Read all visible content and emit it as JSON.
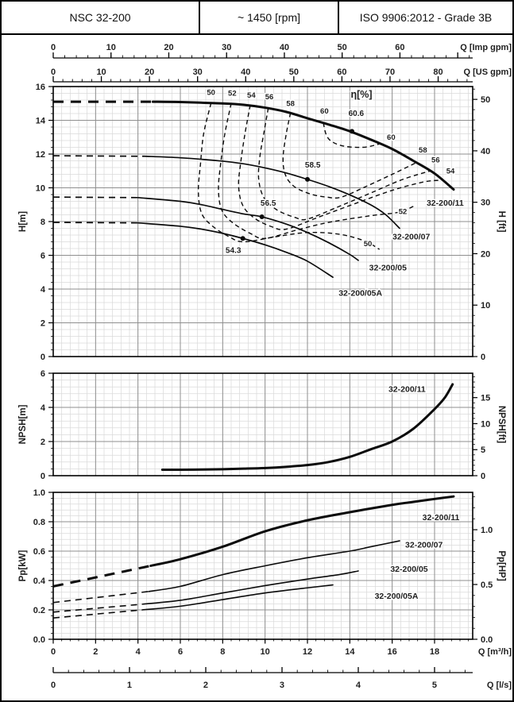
{
  "header": {
    "model": "NSC 32-200",
    "speed": "~ 1450 [rpm]",
    "standard": "ISO 9906:2012 - Grade 3B"
  },
  "colors": {
    "curve": "#0b0b0b",
    "grid_minor": "#dadada",
    "grid_major": "#8f8f8f",
    "border": "#000000",
    "text": "#1f1f1f"
  },
  "axes_top": [
    {
      "id": "imp-gpm",
      "label": "Q [Imp gpm]",
      "units_per_m3h": 3.6662,
      "major": 10,
      "minor": 2,
      "max_label": 60
    },
    {
      "id": "us-gpm",
      "label": "Q [US gpm]",
      "units_per_m3h": 4.4029,
      "major": 10,
      "minor": 2,
      "max_label": 80
    }
  ],
  "axes_bottom": [
    {
      "id": "m3h",
      "label": "Q [m³/h]",
      "units_per_m3h": 1,
      "major": 2,
      "minor": 0.4,
      "max_label": 18
    },
    {
      "id": "ls",
      "label": "Q [l/s]",
      "units_per_m3h": 0.27778,
      "major": 1,
      "minor": 0.2,
      "max_label": 5
    }
  ],
  "chart_data": [
    {
      "id": "head",
      "type": "line",
      "x_range": [
        0,
        19.8
      ],
      "x_unit": "m3/h",
      "y_left": {
        "label": "H[m]",
        "range": [
          0,
          16
        ],
        "major": 2,
        "minor": 0.4,
        "fmt": "int"
      },
      "y_right": {
        "label": "H [ft]",
        "per_left_unit": 3.2808,
        "major": 10,
        "minor": 2,
        "fmt": "int"
      },
      "eta_title": {
        "text": "η[%]",
        "at": [
          14.55,
          15.35
        ]
      },
      "series": [
        {
          "name": "32-200/11",
          "width": 3,
          "dash": [
            [
              0,
              15.1
            ],
            [
              4.7,
              15.1
            ]
          ],
          "solid": [
            [
              4.7,
              15.1
            ],
            [
              6,
              15.08
            ],
            [
              8,
              15.0
            ],
            [
              9,
              14.92
            ],
            [
              10,
              14.75
            ],
            [
              11,
              14.5
            ],
            [
              12,
              14.12
            ],
            [
              13,
              13.75
            ],
            [
              14,
              13.35
            ],
            [
              15,
              12.85
            ],
            [
              16,
              12.3
            ],
            [
              17,
              11.6
            ],
            [
              18,
              10.85
            ],
            [
              18.9,
              9.9
            ]
          ],
          "label": {
            "text": "32-200/11",
            "at": [
              18.5,
              8.95
            ]
          }
        },
        {
          "name": "32-200/07",
          "width": 1.7,
          "dash": [
            [
              0,
              11.9
            ],
            [
              4.3,
              11.87
            ]
          ],
          "solid": [
            [
              4.3,
              11.87
            ],
            [
              6,
              11.78
            ],
            [
              8,
              11.58
            ],
            [
              9,
              11.42
            ],
            [
              10,
              11.18
            ],
            [
              11,
              10.88
            ],
            [
              12,
              10.5
            ],
            [
              13,
              10.08
            ],
            [
              14,
              9.58
            ],
            [
              15,
              8.98
            ],
            [
              15.7,
              8.4
            ],
            [
              16.35,
              7.6
            ]
          ],
          "label": {
            "text": "32-200/07",
            "at": [
              16.9,
              6.95
            ]
          }
        },
        {
          "name": "32-200/05",
          "width": 1.7,
          "dash": [
            [
              0,
              9.45
            ],
            [
              4,
              9.42
            ]
          ],
          "solid": [
            [
              4,
              9.42
            ],
            [
              6,
              9.2
            ],
            [
              7,
              9.0
            ],
            [
              8,
              8.72
            ],
            [
              9,
              8.45
            ],
            [
              9.85,
              8.28
            ],
            [
              11,
              7.85
            ],
            [
              12,
              7.35
            ],
            [
              13,
              6.75
            ],
            [
              14,
              6.05
            ],
            [
              14.4,
              5.7
            ]
          ],
          "label": {
            "text": "32-200/05",
            "at": [
              15.8,
              5.1
            ]
          }
        },
        {
          "name": "32-200/05A",
          "width": 1.7,
          "dash": [
            [
              0,
              7.95
            ],
            [
              4,
              7.92
            ]
          ],
          "solid": [
            [
              4,
              7.92
            ],
            [
              6,
              7.72
            ],
            [
              7,
              7.55
            ],
            [
              8,
              7.3
            ],
            [
              8.95,
              7.0
            ],
            [
              10,
              6.62
            ],
            [
              11,
              6.18
            ],
            [
              12,
              5.65
            ],
            [
              13.2,
              4.7
            ]
          ],
          "label": {
            "text": "32-200/05A",
            "at": [
              14.5,
              3.6
            ]
          }
        }
      ],
      "bep_points": [
        {
          "value": "60.6",
          "at": [
            14.1,
            13.35
          ],
          "label_at": [
            14.3,
            14.25
          ]
        },
        {
          "value": "58.5",
          "at": [
            12.0,
            10.5
          ],
          "label_at": [
            12.25,
            11.2
          ]
        },
        {
          "value": "56.5",
          "at": [
            9.85,
            8.28
          ],
          "label_at": [
            10.15,
            8.95
          ]
        },
        {
          "value": "54.3",
          "at": [
            8.95,
            7.0
          ],
          "label_at": [
            8.5,
            6.15
          ]
        }
      ],
      "efficiency_contours": [
        {
          "value": 50,
          "points": [
            [
              7.45,
              15.02
            ],
            [
              7.1,
              13.2
            ],
            [
              6.95,
              11.4
            ],
            [
              6.85,
              9.8
            ],
            [
              7.0,
              8.5
            ],
            [
              7.5,
              7.75
            ],
            [
              8.3,
              7.1
            ],
            [
              9.0,
              6.8
            ],
            [
              10.5,
              7.1
            ],
            [
              12,
              7.35
            ],
            [
              13.5,
              7.25
            ],
            [
              14.7,
              6.85
            ],
            [
              15.4,
              6.35
            ]
          ]
        },
        {
          "value": 52,
          "points": [
            [
              8.4,
              15.0
            ],
            [
              8.1,
              13.2
            ],
            [
              7.9,
              11.4
            ],
            [
              7.8,
              9.9
            ],
            [
              7.95,
              8.7
            ],
            [
              8.45,
              7.95
            ],
            [
              9.3,
              7.3
            ],
            [
              10.0,
              7.0
            ],
            [
              11.5,
              7.5
            ],
            [
              13,
              7.95
            ],
            [
              15,
              8.35
            ],
            [
              16.3,
              8.55
            ],
            [
              17.0,
              8.9
            ]
          ]
        },
        {
          "value": 54,
          "points": [
            [
              9.3,
              14.9
            ],
            [
              9.05,
              13.2
            ],
            [
              8.85,
              11.5
            ],
            [
              8.75,
              10.1
            ],
            [
              8.95,
              8.95
            ],
            [
              9.5,
              8.2
            ],
            [
              10.3,
              7.7
            ],
            [
              11.0,
              7.55
            ],
            [
              12.5,
              8.25
            ],
            [
              14,
              8.95
            ],
            [
              16,
              9.85
            ],
            [
              17.5,
              10.35
            ],
            [
              18.3,
              10.45
            ]
          ]
        },
        {
          "value": 56,
          "points": [
            [
              10.15,
              14.72
            ],
            [
              9.95,
              13.3
            ],
            [
              9.75,
              11.8
            ],
            [
              9.7,
              10.5
            ],
            [
              9.95,
              9.4
            ],
            [
              10.55,
              8.7
            ],
            [
              11.4,
              8.25
            ],
            [
              12.0,
              8.15
            ],
            [
              13.5,
              8.9
            ],
            [
              15,
              9.7
            ],
            [
              16.5,
              10.5
            ],
            [
              17.8,
              11.0
            ]
          ]
        },
        {
          "value": 58,
          "points": [
            [
              11.2,
              14.44
            ],
            [
              11.0,
              13.2
            ],
            [
              10.85,
              11.8
            ],
            [
              10.95,
              10.8
            ],
            [
              11.35,
              10.1
            ],
            [
              12.1,
              9.65
            ],
            [
              12.9,
              9.45
            ],
            [
              13.6,
              9.45
            ],
            [
              14.8,
              10.1
            ],
            [
              16,
              10.8
            ],
            [
              17.15,
              11.5
            ]
          ]
        },
        {
          "value": 60,
          "points": [
            [
              12.75,
              13.85
            ],
            [
              12.9,
              13.1
            ],
            [
              13.2,
              12.7
            ],
            [
              13.8,
              12.45
            ],
            [
              14.6,
              12.4
            ],
            [
              15.1,
              12.5
            ],
            [
              15.45,
              12.62
            ]
          ]
        }
      ],
      "contour_labels": [
        {
          "text": "50",
          "at": [
            7.45,
            15.5
          ]
        },
        {
          "text": "52",
          "at": [
            8.45,
            15.45
          ]
        },
        {
          "text": "54",
          "at": [
            9.35,
            15.35
          ]
        },
        {
          "text": "56",
          "at": [
            10.2,
            15.25
          ]
        },
        {
          "text": "58",
          "at": [
            11.2,
            14.85
          ]
        },
        {
          "text": "60",
          "at": [
            12.8,
            14.4
          ]
        },
        {
          "text": "60",
          "at": [
            15.95,
            12.85
          ]
        },
        {
          "text": "58",
          "at": [
            17.45,
            12.1
          ]
        },
        {
          "text": "56",
          "at": [
            18.05,
            11.5
          ]
        },
        {
          "text": "54",
          "at": [
            18.75,
            10.85
          ]
        },
        {
          "text": "52",
          "at": [
            16.5,
            8.45
          ]
        },
        {
          "text": "50",
          "at": [
            14.85,
            6.55
          ]
        }
      ]
    },
    {
      "id": "npsh",
      "type": "line",
      "x_range": [
        0,
        19.8
      ],
      "y_left": {
        "label": "NPSH[m]",
        "range": [
          0,
          6
        ],
        "major": 2,
        "minor": 0.4,
        "fmt": "int"
      },
      "y_right": {
        "label": "NPSH[ft]",
        "per_left_unit": 3.2808,
        "major": 5,
        "minor": 1,
        "fmt": "int"
      },
      "series": [
        {
          "name": "32-200/11",
          "width": 3,
          "solid": [
            [
              5.15,
              0.35
            ],
            [
              6,
              0.35
            ],
            [
              7,
              0.36
            ],
            [
              8,
              0.38
            ],
            [
              9,
              0.41
            ],
            [
              10,
              0.45
            ],
            [
              11,
              0.52
            ],
            [
              12,
              0.62
            ],
            [
              13,
              0.8
            ],
            [
              14,
              1.1
            ],
            [
              15,
              1.55
            ],
            [
              16,
              2.0
            ],
            [
              17,
              2.75
            ],
            [
              18,
              3.9
            ],
            [
              18.5,
              4.6
            ],
            [
              18.85,
              5.35
            ]
          ],
          "label": {
            "text": "32-200/11",
            "at": [
              16.7,
              4.9
            ]
          }
        }
      ]
    },
    {
      "id": "power",
      "type": "line",
      "x_range": [
        0,
        19.8
      ],
      "y_left": {
        "label": "Pp[kW]",
        "range": [
          0,
          1.0
        ],
        "major": 0.2,
        "minor": 0.04,
        "fmt": "1dp"
      },
      "y_right": {
        "label": "Pp[HP]",
        "per_left_unit": 1.341,
        "major": 0.5,
        "minor": 0.1,
        "fmt": "1dp"
      },
      "series": [
        {
          "name": "32-200/11",
          "width": 3,
          "dash": [
            [
              0,
              0.36
            ],
            [
              4.6,
              0.5
            ]
          ],
          "solid": [
            [
              4.6,
              0.5
            ],
            [
              6,
              0.545
            ],
            [
              8,
              0.63
            ],
            [
              10,
              0.735
            ],
            [
              12,
              0.81
            ],
            [
              14,
              0.865
            ],
            [
              16,
              0.915
            ],
            [
              17,
              0.935
            ],
            [
              18,
              0.955
            ],
            [
              18.9,
              0.972
            ]
          ],
          "label": {
            "text": "32-200/11",
            "at": [
              18.3,
              0.81
            ]
          }
        },
        {
          "name": "32-200/07",
          "width": 1.6,
          "dash": [
            [
              0,
              0.25
            ],
            [
              4.5,
              0.325
            ]
          ],
          "solid": [
            [
              4.5,
              0.325
            ],
            [
              6,
              0.36
            ],
            [
              8,
              0.44
            ],
            [
              10,
              0.5
            ],
            [
              12,
              0.555
            ],
            [
              14,
              0.6
            ],
            [
              15,
              0.63
            ],
            [
              16.35,
              0.67
            ]
          ],
          "label": {
            "text": "32-200/07",
            "at": [
              17.5,
              0.625
            ]
          }
        },
        {
          "name": "32-200/05",
          "width": 1.6,
          "dash": [
            [
              0,
              0.185
            ],
            [
              4.3,
              0.24
            ]
          ],
          "solid": [
            [
              4.3,
              0.24
            ],
            [
              6,
              0.265
            ],
            [
              8,
              0.315
            ],
            [
              10,
              0.365
            ],
            [
              12,
              0.41
            ],
            [
              13.5,
              0.44
            ],
            [
              14.4,
              0.465
            ]
          ],
          "label": {
            "text": "32-200/05",
            "at": [
              16.8,
              0.46
            ]
          }
        },
        {
          "name": "32-200/05A",
          "width": 1.6,
          "dash": [
            [
              0,
              0.145
            ],
            [
              4.2,
              0.2
            ]
          ],
          "solid": [
            [
              4.2,
              0.2
            ],
            [
              6,
              0.225
            ],
            [
              8,
              0.27
            ],
            [
              10,
              0.315
            ],
            [
              12,
              0.35
            ],
            [
              13.2,
              0.37
            ]
          ],
          "label": {
            "text": "32-200/05A",
            "at": [
              16.2,
              0.275
            ]
          }
        }
      ]
    }
  ]
}
